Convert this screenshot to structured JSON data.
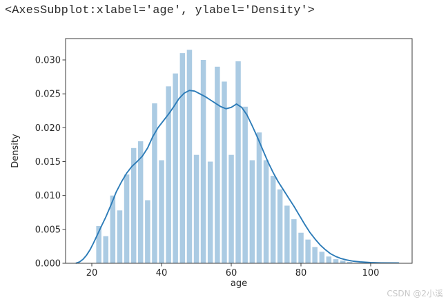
{
  "console_output": "<AxesSubplot:xlabel='age', ylabel='Density'>",
  "watermark": "CSDN @2小溪",
  "chart_data": {
    "type": "histogram_kde",
    "title": "",
    "xlabel": "age",
    "ylabel": "Density",
    "x_ticks": [
      20,
      40,
      60,
      80,
      100
    ],
    "y_tick_labels": [
      "0.000",
      "0.005",
      "0.010",
      "0.015",
      "0.020",
      "0.025",
      "0.030"
    ],
    "xlim": [
      12.5,
      112
    ],
    "ylim": [
      0,
      0.0332
    ],
    "grid": false,
    "legend": "none",
    "colors": {
      "bar": "#abcbe3",
      "line": "#2d7cb8",
      "spine": "#3b3b3b",
      "tick_text": "#262626"
    },
    "histogram": {
      "bin_width": 2,
      "bin_starts": [
        21,
        23,
        25,
        27,
        29,
        31,
        33,
        35,
        37,
        39,
        41,
        43,
        45,
        47,
        49,
        51,
        53,
        55,
        57,
        59,
        61,
        63,
        65,
        67,
        69,
        71,
        73,
        75,
        77,
        79,
        81,
        83,
        85,
        87,
        89,
        91,
        93
      ],
      "densities": [
        0.0055,
        0.004,
        0.01,
        0.0078,
        0.0131,
        0.017,
        0.018,
        0.0093,
        0.0236,
        0.0152,
        0.0261,
        0.028,
        0.031,
        0.0315,
        0.016,
        0.03,
        0.015,
        0.029,
        0.0268,
        0.016,
        0.0298,
        0.0231,
        0.0152,
        0.0193,
        0.0152,
        0.0129,
        0.0109,
        0.0085,
        0.0065,
        0.0045,
        0.0035,
        0.0024,
        0.0017,
        0.001,
        0.0006,
        0.0004,
        0.0002
      ]
    },
    "kde": {
      "x": [
        15.5,
        16.5,
        17.5,
        18.5,
        19.5,
        20.5,
        21.5,
        22.5,
        24,
        25.5,
        27,
        28.5,
        30,
        31.5,
        33,
        34.5,
        36,
        37.5,
        39,
        40.5,
        42,
        43.5,
        45,
        46.5,
        48,
        49.5,
        51,
        52.5,
        54,
        55.5,
        57,
        58.5,
        60,
        61.5,
        63,
        64.5,
        66,
        67.5,
        69,
        70.5,
        72,
        73.5,
        75,
        76.5,
        78,
        79.5,
        81,
        82.5,
        84,
        85.5,
        87,
        88.5,
        90,
        91.5,
        93,
        95,
        97,
        100,
        103,
        108
      ],
      "y": [
        2e-05,
        0.0002,
        0.0006,
        0.0012,
        0.002,
        0.003,
        0.0041,
        0.0052,
        0.0068,
        0.0086,
        0.0105,
        0.012,
        0.0133,
        0.0143,
        0.015,
        0.0158,
        0.017,
        0.0187,
        0.02,
        0.021,
        0.022,
        0.0231,
        0.0243,
        0.0251,
        0.0255,
        0.0254,
        0.025,
        0.0246,
        0.0241,
        0.0236,
        0.0231,
        0.0228,
        0.023,
        0.0235,
        0.023,
        0.0219,
        0.0203,
        0.0186,
        0.0168,
        0.015,
        0.0134,
        0.012,
        0.0108,
        0.0096,
        0.0084,
        0.0071,
        0.0058,
        0.0046,
        0.0036,
        0.0027,
        0.002,
        0.0014,
        0.001,
        0.0007,
        0.0005,
        0.0003,
        0.0002,
        0.0001,
        6e-05,
        4e-05
      ]
    }
  }
}
